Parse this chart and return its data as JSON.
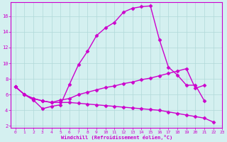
{
  "xlabel": "Windchill (Refroidissement éolien,°C)",
  "ylabel": "",
  "background_color": "#d4f0f0",
  "grid_color": "#b0d8d8",
  "line_color": "#cc00cc",
  "xlim": [
    -0.5,
    23
  ],
  "ylim": [
    1.8,
    17.8
  ],
  "xticks": [
    0,
    1,
    2,
    3,
    4,
    5,
    6,
    7,
    8,
    9,
    10,
    11,
    12,
    13,
    14,
    15,
    16,
    17,
    18,
    19,
    20,
    21,
    22,
    23
  ],
  "yticks": [
    2,
    4,
    6,
    8,
    10,
    12,
    14,
    16
  ],
  "series": [
    {
      "x": [
        0,
        1,
        2,
        3,
        4,
        5,
        6,
        7,
        8,
        9,
        10,
        11,
        12,
        13,
        14,
        15,
        16,
        17,
        18,
        19,
        20,
        21
      ],
      "y": [
        7.0,
        6.0,
        5.3,
        4.2,
        4.5,
        4.7,
        7.3,
        9.8,
        11.5,
        13.5,
        14.5,
        15.2,
        16.5,
        17.0,
        17.2,
        17.3,
        13.0,
        9.5,
        8.5,
        7.2,
        7.2,
        5.2
      ],
      "marker": "D",
      "markersize": 2.5,
      "linewidth": 1.0
    },
    {
      "x": [
        0,
        1,
        2,
        3,
        4,
        5,
        6,
        7,
        8,
        9,
        10,
        11,
        12,
        13,
        14,
        15,
        16,
        17,
        18,
        19,
        20,
        21
      ],
      "y": [
        7.0,
        6.0,
        5.5,
        5.2,
        5.0,
        5.3,
        5.5,
        6.0,
        6.3,
        6.6,
        6.9,
        7.1,
        7.4,
        7.6,
        7.9,
        8.1,
        8.4,
        8.7,
        9.0,
        9.3,
        6.8,
        7.2
      ],
      "marker": "D",
      "markersize": 2.5,
      "linewidth": 1.0
    },
    {
      "x": [
        0,
        1,
        2,
        3,
        4,
        5,
        6,
        7,
        8,
        9,
        10,
        11,
        12,
        13,
        14,
        15,
        16,
        17,
        18,
        19,
        20,
        21,
        22
      ],
      "y": [
        7.0,
        6.0,
        5.5,
        5.2,
        5.0,
        5.0,
        5.0,
        4.9,
        4.8,
        4.7,
        4.6,
        4.5,
        4.4,
        4.3,
        4.2,
        4.1,
        4.0,
        3.8,
        3.6,
        3.4,
        3.2,
        3.0,
        2.5
      ],
      "marker": "D",
      "markersize": 2.5,
      "linewidth": 1.0
    }
  ],
  "axis_color": "#cc00cc",
  "tick_color": "#cc00cc",
  "xlabel_color": "#cc00cc",
  "figsize": [
    3.2,
    2.0
  ],
  "dpi": 100
}
